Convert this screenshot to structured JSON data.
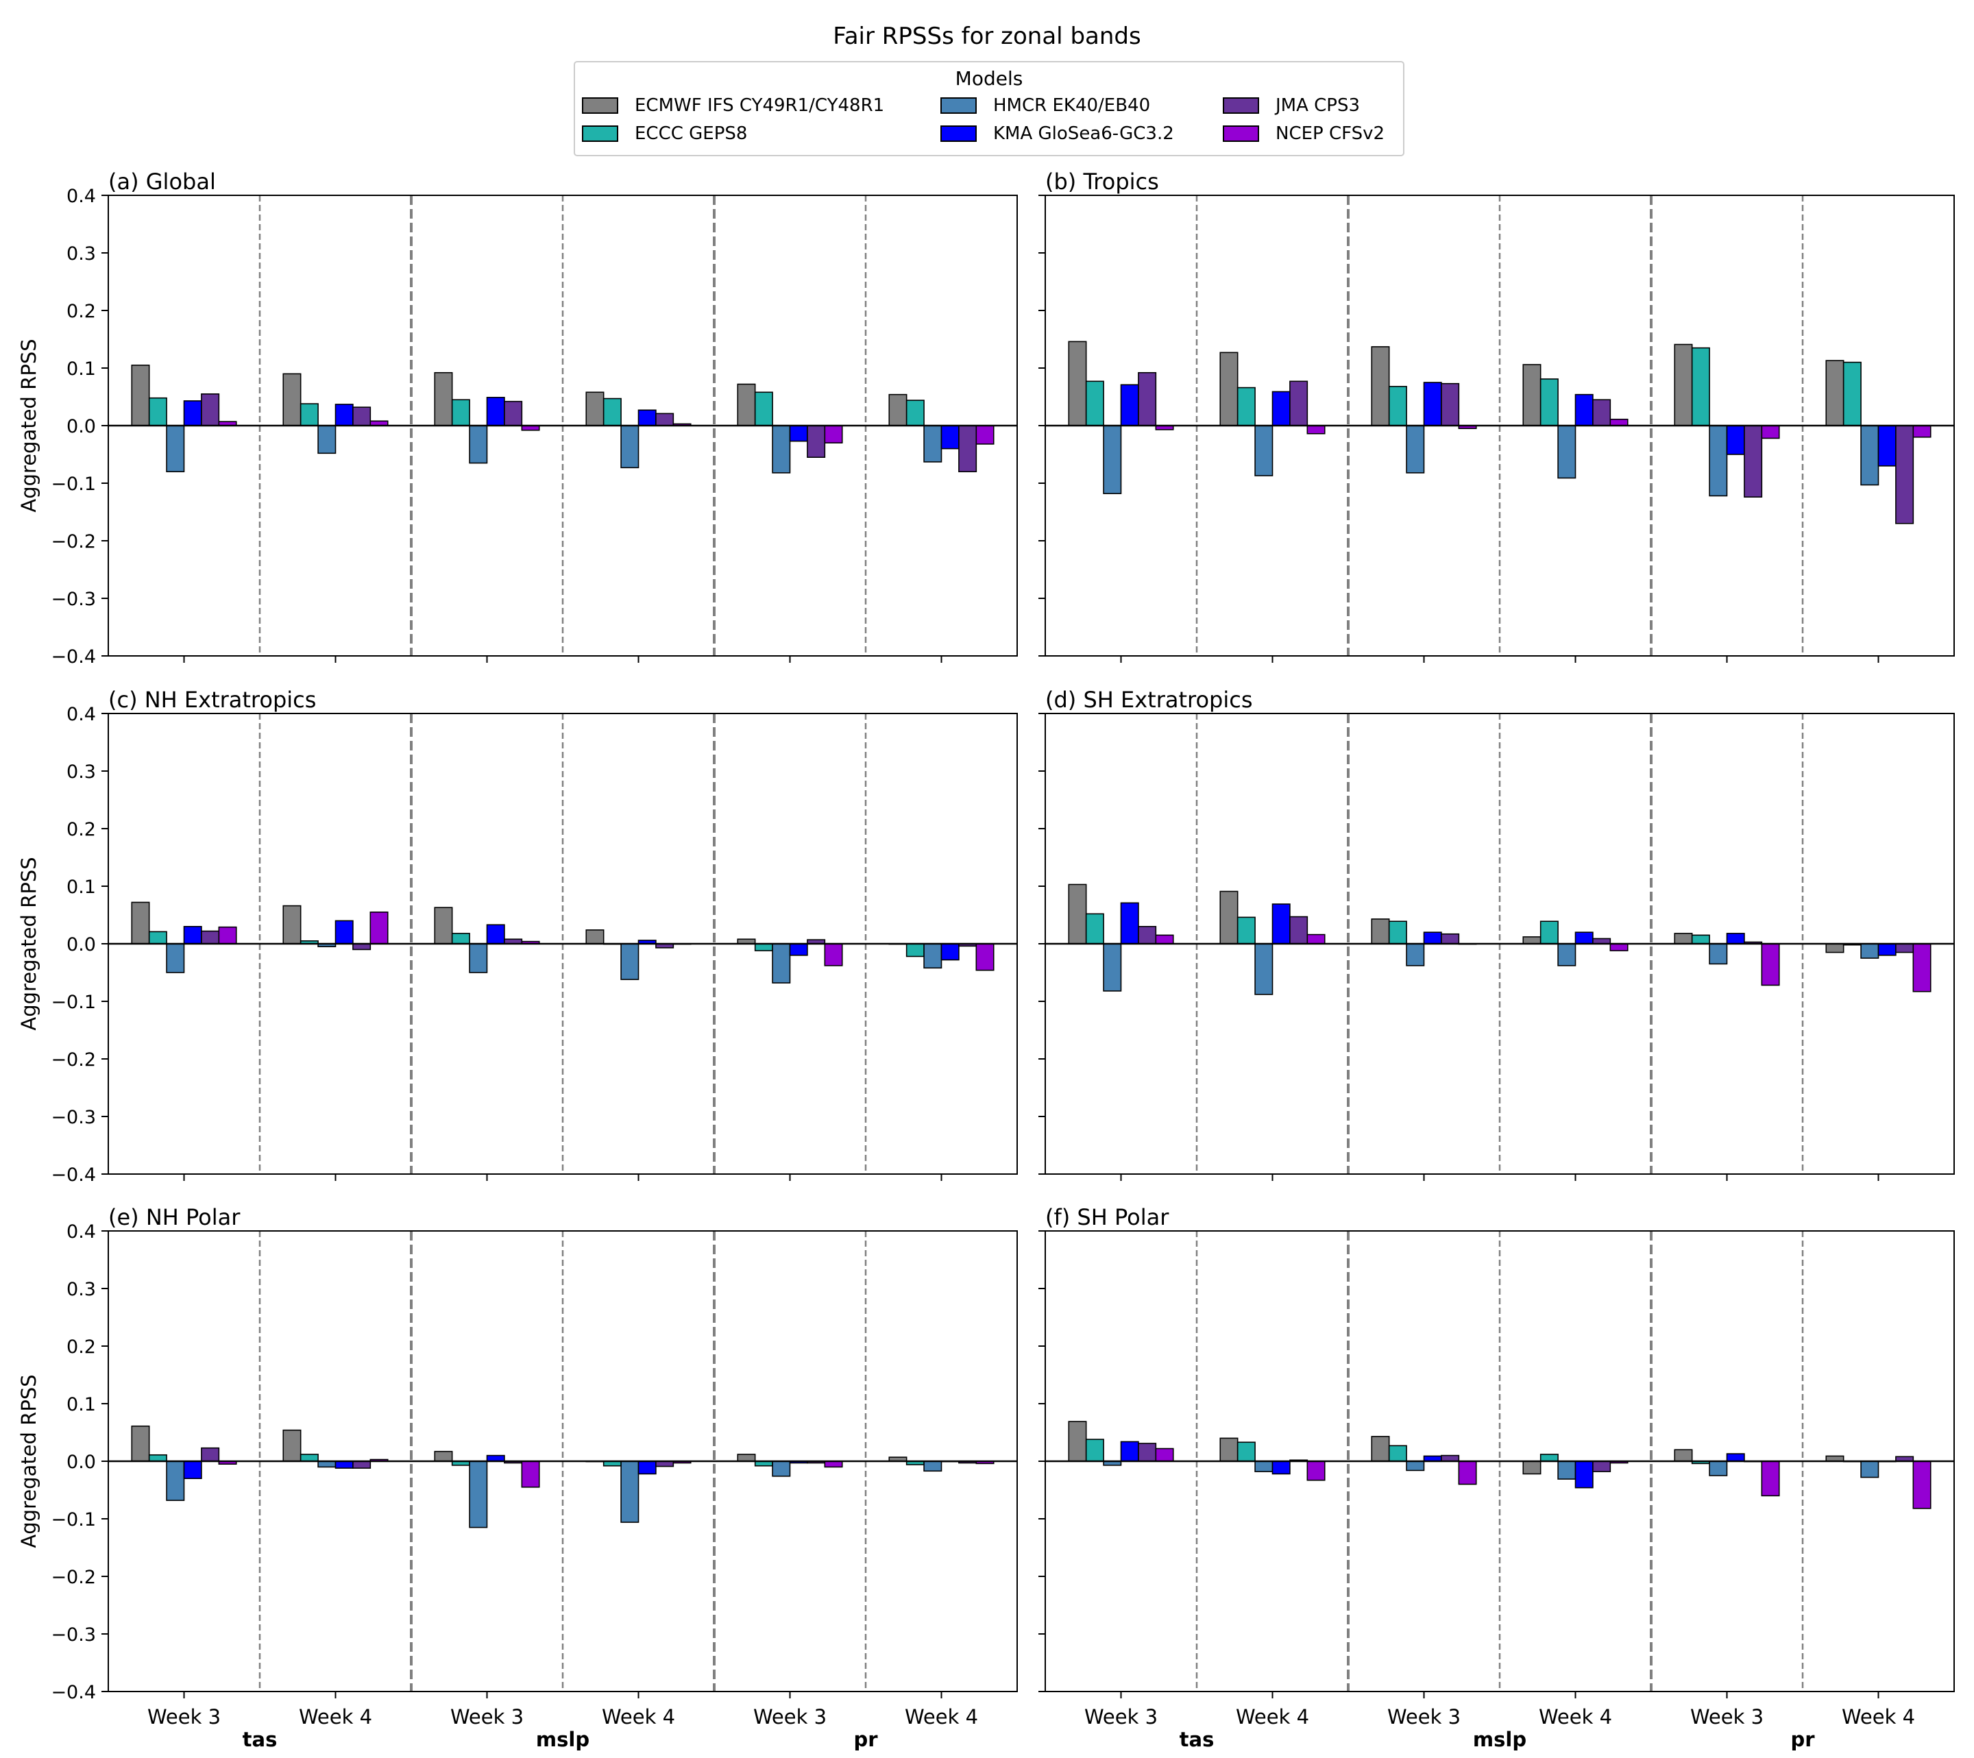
{
  "chart_data": {
    "type": "bar",
    "title": "Fair RPSSs for zonal bands",
    "legend": {
      "title": "Models",
      "placement": "top-center",
      "columns": 3
    },
    "ylabel": "Aggregated RPSS",
    "ylim": [
      -0.4,
      0.4
    ],
    "yticks": [
      "0.4",
      "0.3",
      "0.2",
      "0.1",
      "0.0",
      "−0.1",
      "−0.2",
      "−0.3",
      "−0.4"
    ],
    "ytick_values": [
      0.4,
      0.3,
      0.2,
      0.1,
      0.0,
      -0.1,
      -0.2,
      -0.3,
      -0.4
    ],
    "categories": [
      "Week 3",
      "Week 4",
      "Week 3",
      "Week 4",
      "Week 3",
      "Week 4"
    ],
    "variables": [
      "tas",
      "mslp",
      "pr"
    ],
    "grid": false,
    "models": [
      {
        "name": "ECMWF IFS CY49R1/CY48R1",
        "color": "#808080"
      },
      {
        "name": "ECCC GEPS8",
        "color": "#20b2aa"
      },
      {
        "name": "HMCR EK40/EB40",
        "color": "#4682b4"
      },
      {
        "name": "KMA GloSea6-GC3.2",
        "color": "#0000ff"
      },
      {
        "name": "JMA CPS3",
        "color": "#663399"
      },
      {
        "name": "NCEP CFSv2",
        "color": "#9400d3"
      }
    ],
    "panels": [
      {
        "title": "(a) Global",
        "values": [
          [
            0.105,
            0.048,
            -0.08,
            0.043,
            0.055,
            0.007
          ],
          [
            0.09,
            0.038,
            -0.048,
            0.037,
            0.032,
            0.008
          ],
          [
            0.092,
            0.045,
            -0.065,
            0.049,
            0.042,
            -0.008
          ],
          [
            0.058,
            0.047,
            -0.073,
            0.027,
            0.021,
            0.003
          ],
          [
            0.072,
            0.058,
            -0.082,
            -0.027,
            -0.055,
            -0.03
          ],
          [
            0.054,
            0.044,
            -0.063,
            -0.04,
            -0.08,
            -0.032
          ]
        ]
      },
      {
        "title": "(b) Tropics",
        "values": [
          [
            0.146,
            0.077,
            -0.118,
            0.071,
            0.092,
            -0.007
          ],
          [
            0.127,
            0.066,
            -0.087,
            0.059,
            0.077,
            -0.014
          ],
          [
            0.137,
            0.068,
            -0.082,
            0.075,
            0.073,
            -0.005
          ],
          [
            0.106,
            0.081,
            -0.091,
            0.054,
            0.045,
            0.011
          ],
          [
            0.141,
            0.135,
            -0.122,
            -0.05,
            -0.124,
            -0.022
          ],
          [
            0.113,
            0.11,
            -0.103,
            -0.07,
            -0.17,
            -0.02
          ]
        ]
      },
      {
        "title": "(c) NH Extratropics",
        "values": [
          [
            0.072,
            0.021,
            -0.05,
            0.03,
            0.022,
            0.029
          ],
          [
            0.066,
            0.005,
            -0.005,
            0.04,
            -0.01,
            0.055
          ],
          [
            0.063,
            0.018,
            -0.05,
            0.033,
            0.008,
            0.004
          ],
          [
            0.024,
            0.0,
            -0.062,
            0.006,
            -0.007,
            0.0
          ],
          [
            0.008,
            -0.012,
            -0.068,
            -0.02,
            0.007,
            -0.038
          ],
          [
            0.0,
            -0.022,
            -0.042,
            -0.028,
            -0.004,
            -0.046
          ]
        ]
      },
      {
        "title": "(d) SH Extratropics",
        "values": [
          [
            0.103,
            0.052,
            -0.082,
            0.071,
            0.03,
            0.015
          ],
          [
            0.091,
            0.046,
            -0.088,
            0.069,
            0.047,
            0.016
          ],
          [
            0.043,
            0.039,
            -0.038,
            0.02,
            0.017,
            0.0
          ],
          [
            0.012,
            0.039,
            -0.038,
            0.02,
            0.009,
            -0.012
          ],
          [
            0.018,
            0.015,
            -0.035,
            0.018,
            0.003,
            -0.072
          ],
          [
            -0.015,
            -0.002,
            -0.025,
            -0.02,
            -0.015,
            -0.083
          ]
        ]
      },
      {
        "title": "(e) NH Polar",
        "values": [
          [
            0.061,
            0.011,
            -0.068,
            -0.03,
            0.023,
            -0.005
          ],
          [
            0.054,
            0.012,
            -0.01,
            -0.012,
            -0.012,
            0.003
          ],
          [
            0.017,
            -0.007,
            -0.115,
            0.01,
            -0.003,
            -0.045
          ],
          [
            0.0,
            -0.008,
            -0.106,
            -0.022,
            -0.009,
            -0.003
          ],
          [
            0.012,
            -0.008,
            -0.026,
            -0.003,
            -0.003,
            -0.01
          ],
          [
            0.007,
            -0.006,
            -0.017,
            0.0,
            -0.003,
            -0.004
          ]
        ]
      },
      {
        "title": "(f) SH Polar",
        "values": [
          [
            0.069,
            0.038,
            -0.007,
            0.034,
            0.031,
            0.022
          ],
          [
            0.04,
            0.033,
            -0.018,
            -0.022,
            0.002,
            -0.033
          ],
          [
            0.043,
            0.027,
            -0.016,
            0.009,
            0.01,
            -0.04
          ],
          [
            -0.022,
            0.012,
            -0.031,
            -0.046,
            -0.018,
            -0.003
          ],
          [
            0.02,
            -0.004,
            -0.025,
            0.013,
            0.0,
            -0.06
          ],
          [
            0.009,
            0.0,
            -0.028,
            0.0,
            0.008,
            -0.082
          ]
        ]
      }
    ]
  }
}
